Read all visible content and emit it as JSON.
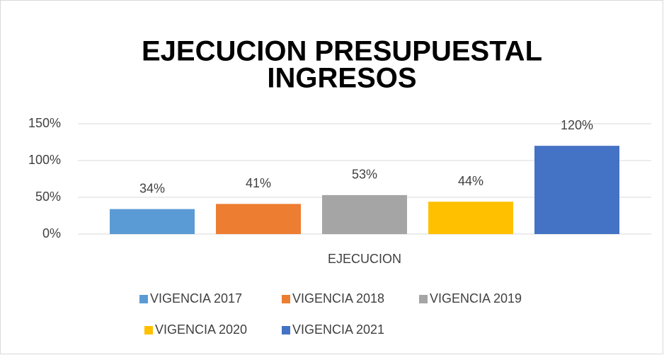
{
  "chart_data": {
    "type": "bar",
    "title": [
      "EJECUCION PRESUPUESTAL",
      "INGRESOS"
    ],
    "categories": [
      "EJECUCION"
    ],
    "series": [
      {
        "name": "VIGENCIA 2017",
        "color": "#5b9bd5",
        "values": [
          34
        ],
        "value_labels": [
          "34%"
        ]
      },
      {
        "name": "VIGENCIA 2018",
        "color": "#ed7d31",
        "values": [
          41
        ],
        "value_labels": [
          "41%"
        ]
      },
      {
        "name": "VIGENCIA 2019",
        "color": "#a5a5a5",
        "values": [
          53
        ],
        "value_labels": [
          "53%"
        ]
      },
      {
        "name": "VIGENCIA 2020",
        "color": "#ffc000",
        "values": [
          44
        ],
        "value_labels": [
          "44%"
        ]
      },
      {
        "name": "VIGENCIA 2021",
        "color": "#4472c4",
        "values": [
          120
        ],
        "value_labels": [
          "120%"
        ]
      }
    ],
    "ylim": [
      0,
      150
    ],
    "yticks": [
      {
        "value": 0,
        "label": "0%"
      },
      {
        "value": 50,
        "label": "50%"
      },
      {
        "value": 100,
        "label": "100%"
      },
      {
        "value": 150,
        "label": "150%"
      }
    ],
    "grid": true,
    "legend": "bottom"
  }
}
